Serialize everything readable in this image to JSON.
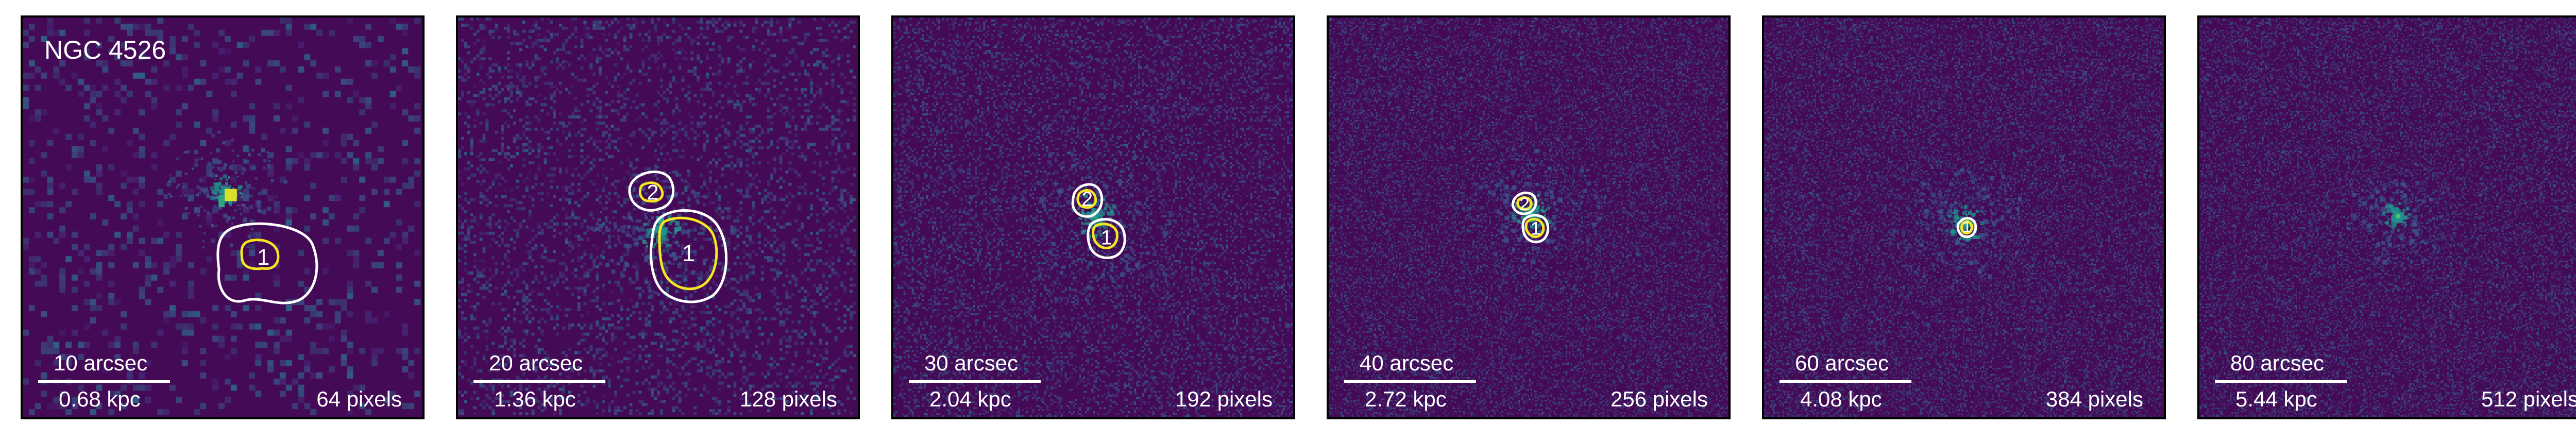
{
  "figure": {
    "galaxy_name": "NGC 4526",
    "colors": {
      "background": "#440a56",
      "noise": "#3a5c8c",
      "core_bright": "#d8e02c",
      "core_mid": "#2ca585",
      "contour_outer": "#ffffff",
      "contour_inner": "#f5e61e"
    },
    "panels": [
      {
        "angular_scale": "10 arcsec",
        "physical_scale": "0.68 kpc",
        "pixels": "64 pixels",
        "sources": [
          {
            "label": "1"
          }
        ]
      },
      {
        "angular_scale": "20 arcsec",
        "physical_scale": "1.36 kpc",
        "pixels": "128 pixels",
        "sources": [
          {
            "label": "1"
          },
          {
            "label": "2"
          }
        ]
      },
      {
        "angular_scale": "30 arcsec",
        "physical_scale": "2.04 kpc",
        "pixels": "192 pixels",
        "sources": [
          {
            "label": "1"
          },
          {
            "label": "2"
          }
        ]
      },
      {
        "angular_scale": "40 arcsec",
        "physical_scale": "2.72 kpc",
        "pixels": "256 pixels",
        "sources": [
          {
            "label": "1"
          },
          {
            "label": "2"
          }
        ]
      },
      {
        "angular_scale": "60 arcsec",
        "physical_scale": "4.08 kpc",
        "pixels": "384 pixels",
        "sources": [
          {
            "label": "1"
          }
        ]
      },
      {
        "angular_scale": "80 arcsec",
        "physical_scale": "5.44 kpc",
        "pixels": "512 pixels",
        "sources": []
      }
    ]
  }
}
